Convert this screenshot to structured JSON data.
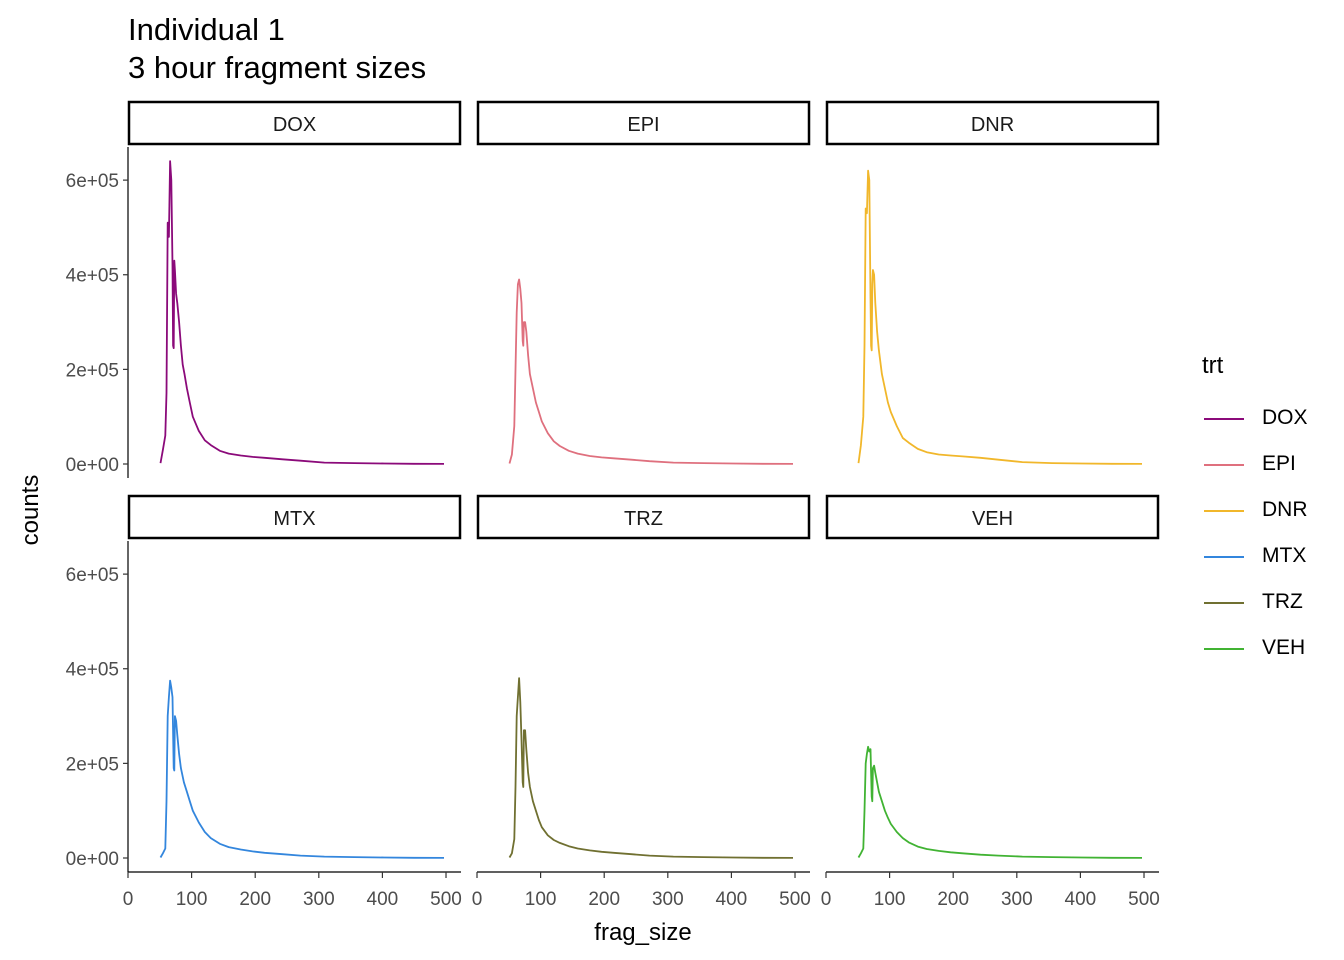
{
  "colors": {
    "DOX": "#8B0A7A",
    "EPI": "#DF707E",
    "DNR": "#F1B72B",
    "MTX": "#3386DD",
    "TRZ": "#707031",
    "VEH": "#41B333"
  },
  "chart_data": {
    "type": "line",
    "title": "Individual 1",
    "subtitle": "3 hour fragment sizes",
    "xlabel": "frag_size",
    "ylabel": "counts",
    "xlim": [
      0,
      500
    ],
    "ylim": [
      0,
      670000
    ],
    "x_ticks": [
      0,
      100,
      200,
      300,
      400,
      500
    ],
    "x_tick_labels": [
      "0",
      "100",
      "200",
      "300",
      "400",
      "500"
    ],
    "y_ticks": [
      0,
      200000,
      400000,
      600000
    ],
    "y_tick_labels": [
      "0e+00",
      "2e+05",
      "4e+05",
      "6e+05"
    ],
    "grid": false,
    "legend": {
      "title": "trt",
      "position": "right",
      "entries": [
        "DOX",
        "EPI",
        "DNR",
        "MTX",
        "TRZ",
        "VEH"
      ]
    },
    "facets": [
      "DOX",
      "EPI",
      "DNR",
      "MTX",
      "TRZ",
      "VEH"
    ],
    "series": [
      {
        "name": "DOX",
        "points": [
          [
            26,
            2000
          ],
          [
            30,
            30000
          ],
          [
            34,
            60000
          ],
          [
            36,
            150000
          ],
          [
            38,
            510000
          ],
          [
            40,
            480000
          ],
          [
            42,
            640000
          ],
          [
            44,
            600000
          ],
          [
            46,
            420000
          ],
          [
            47,
            250000
          ],
          [
            48,
            245000
          ],
          [
            49,
            430000
          ],
          [
            50,
            410000
          ],
          [
            52,
            360000
          ],
          [
            54,
            340000
          ],
          [
            57,
            300000
          ],
          [
            60,
            250000
          ],
          [
            63,
            210000
          ],
          [
            66,
            190000
          ],
          [
            70,
            160000
          ],
          [
            75,
            130000
          ],
          [
            80,
            100000
          ],
          [
            85,
            85000
          ],
          [
            90,
            70000
          ],
          [
            100,
            50000
          ],
          [
            110,
            40000
          ],
          [
            125,
            28000
          ],
          [
            140,
            22000
          ],
          [
            160,
            18000
          ],
          [
            180,
            15000
          ],
          [
            200,
            13000
          ],
          [
            230,
            10000
          ],
          [
            260,
            7000
          ],
          [
            300,
            3000
          ],
          [
            350,
            2000
          ],
          [
            400,
            1000
          ],
          [
            450,
            500
          ],
          [
            500,
            200
          ]
        ]
      },
      {
        "name": "EPI",
        "points": [
          [
            26,
            1000
          ],
          [
            30,
            20000
          ],
          [
            34,
            80000
          ],
          [
            36,
            200000
          ],
          [
            38,
            320000
          ],
          [
            40,
            380000
          ],
          [
            42,
            390000
          ],
          [
            44,
            370000
          ],
          [
            46,
            340000
          ],
          [
            48,
            260000
          ],
          [
            49,
            250000
          ],
          [
            50,
            300000
          ],
          [
            52,
            300000
          ],
          [
            54,
            280000
          ],
          [
            57,
            230000
          ],
          [
            60,
            190000
          ],
          [
            65,
            160000
          ],
          [
            70,
            130000
          ],
          [
            75,
            110000
          ],
          [
            80,
            90000
          ],
          [
            90,
            65000
          ],
          [
            100,
            48000
          ],
          [
            110,
            38000
          ],
          [
            125,
            28000
          ],
          [
            140,
            22000
          ],
          [
            160,
            17000
          ],
          [
            180,
            14000
          ],
          [
            200,
            12000
          ],
          [
            230,
            9000
          ],
          [
            260,
            6000
          ],
          [
            300,
            3000
          ],
          [
            350,
            2000
          ],
          [
            400,
            1000
          ],
          [
            450,
            500
          ],
          [
            500,
            200
          ]
        ]
      },
      {
        "name": "DNR",
        "points": [
          [
            26,
            2000
          ],
          [
            30,
            40000
          ],
          [
            34,
            100000
          ],
          [
            36,
            250000
          ],
          [
            38,
            540000
          ],
          [
            40,
            530000
          ],
          [
            42,
            620000
          ],
          [
            44,
            600000
          ],
          [
            46,
            350000
          ],
          [
            47,
            250000
          ],
          [
            48,
            240000
          ],
          [
            49,
            380000
          ],
          [
            50,
            410000
          ],
          [
            52,
            400000
          ],
          [
            54,
            340000
          ],
          [
            57,
            280000
          ],
          [
            60,
            240000
          ],
          [
            65,
            190000
          ],
          [
            70,
            160000
          ],
          [
            75,
            130000
          ],
          [
            80,
            110000
          ],
          [
            90,
            80000
          ],
          [
            100,
            55000
          ],
          [
            110,
            45000
          ],
          [
            125,
            32000
          ],
          [
            140,
            25000
          ],
          [
            160,
            20000
          ],
          [
            180,
            18000
          ],
          [
            200,
            16000
          ],
          [
            230,
            13000
          ],
          [
            260,
            9000
          ],
          [
            300,
            4000
          ],
          [
            350,
            2000
          ],
          [
            400,
            1000
          ],
          [
            450,
            500
          ],
          [
            500,
            200
          ]
        ]
      },
      {
        "name": "MTX",
        "points": [
          [
            26,
            1000
          ],
          [
            30,
            10000
          ],
          [
            34,
            20000
          ],
          [
            36,
            120000
          ],
          [
            38,
            300000
          ],
          [
            40,
            340000
          ],
          [
            42,
            375000
          ],
          [
            44,
            360000
          ],
          [
            46,
            340000
          ],
          [
            48,
            190000
          ],
          [
            49,
            185000
          ],
          [
            50,
            300000
          ],
          [
            52,
            290000
          ],
          [
            54,
            260000
          ],
          [
            57,
            220000
          ],
          [
            60,
            190000
          ],
          [
            65,
            160000
          ],
          [
            70,
            140000
          ],
          [
            75,
            120000
          ],
          [
            80,
            100000
          ],
          [
            90,
            75000
          ],
          [
            100,
            55000
          ],
          [
            110,
            42000
          ],
          [
            125,
            30000
          ],
          [
            140,
            23000
          ],
          [
            160,
            18000
          ],
          [
            180,
            14000
          ],
          [
            200,
            11000
          ],
          [
            230,
            8000
          ],
          [
            260,
            5000
          ],
          [
            300,
            3000
          ],
          [
            350,
            2000
          ],
          [
            400,
            1000
          ],
          [
            450,
            500
          ],
          [
            500,
            200
          ]
        ]
      },
      {
        "name": "TRZ",
        "points": [
          [
            26,
            1000
          ],
          [
            30,
            10000
          ],
          [
            34,
            40000
          ],
          [
            36,
            150000
          ],
          [
            38,
            300000
          ],
          [
            40,
            340000
          ],
          [
            42,
            380000
          ],
          [
            44,
            330000
          ],
          [
            46,
            250000
          ],
          [
            48,
            160000
          ],
          [
            49,
            150000
          ],
          [
            50,
            270000
          ],
          [
            52,
            270000
          ],
          [
            54,
            230000
          ],
          [
            57,
            180000
          ],
          [
            60,
            150000
          ],
          [
            65,
            120000
          ],
          [
            70,
            100000
          ],
          [
            75,
            80000
          ],
          [
            80,
            65000
          ],
          [
            90,
            48000
          ],
          [
            100,
            38000
          ],
          [
            110,
            32000
          ],
          [
            125,
            25000
          ],
          [
            140,
            20000
          ],
          [
            160,
            16000
          ],
          [
            180,
            13000
          ],
          [
            200,
            11000
          ],
          [
            230,
            8000
          ],
          [
            260,
            5000
          ],
          [
            300,
            3000
          ],
          [
            350,
            2000
          ],
          [
            400,
            1000
          ],
          [
            450,
            500
          ],
          [
            500,
            200
          ]
        ]
      },
      {
        "name": "VEH",
        "points": [
          [
            26,
            1000
          ],
          [
            30,
            10000
          ],
          [
            34,
            20000
          ],
          [
            36,
            100000
          ],
          [
            38,
            200000
          ],
          [
            40,
            220000
          ],
          [
            42,
            235000
          ],
          [
            44,
            225000
          ],
          [
            46,
            230000
          ],
          [
            48,
            130000
          ],
          [
            49,
            120000
          ],
          [
            50,
            190000
          ],
          [
            52,
            195000
          ],
          [
            54,
            180000
          ],
          [
            57,
            160000
          ],
          [
            60,
            140000
          ],
          [
            65,
            120000
          ],
          [
            70,
            100000
          ],
          [
            75,
            85000
          ],
          [
            80,
            72000
          ],
          [
            90,
            55000
          ],
          [
            100,
            42000
          ],
          [
            110,
            33000
          ],
          [
            125,
            24000
          ],
          [
            140,
            19000
          ],
          [
            160,
            15000
          ],
          [
            180,
            12000
          ],
          [
            200,
            10000
          ],
          [
            230,
            7000
          ],
          [
            260,
            5000
          ],
          [
            300,
            3000
          ],
          [
            350,
            2000
          ],
          [
            400,
            1000
          ],
          [
            450,
            500
          ],
          [
            500,
            200
          ]
        ]
      }
    ]
  }
}
